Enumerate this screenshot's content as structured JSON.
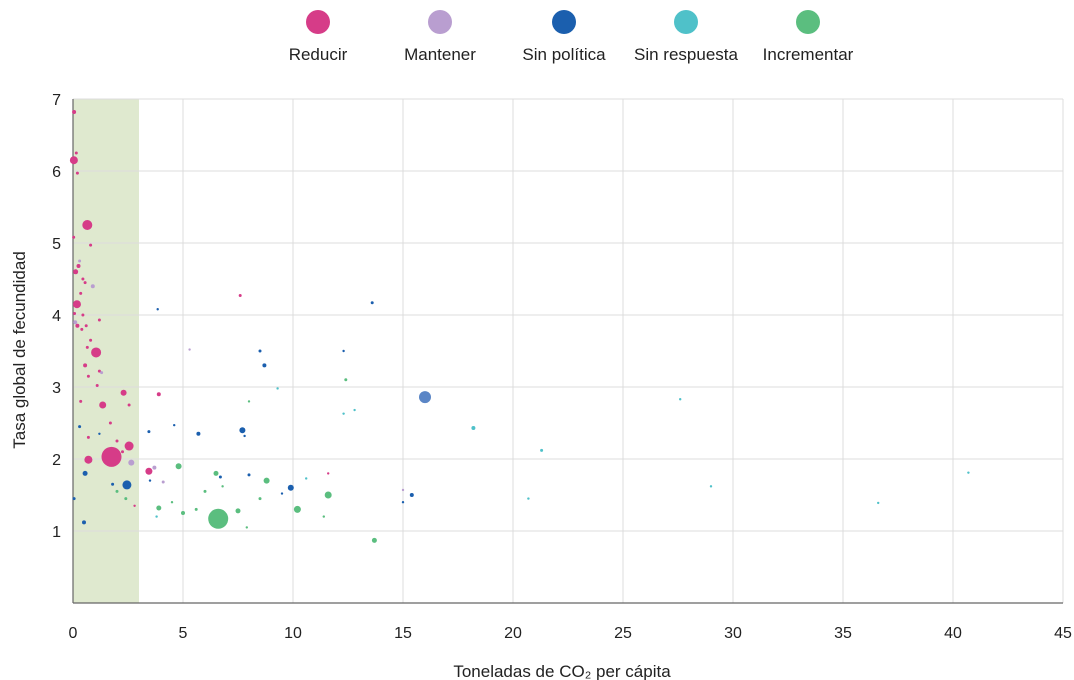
{
  "chart_data": {
    "type": "scatter",
    "title": "",
    "xlabel": "Toneladas de CO₂ per cápita",
    "ylabel": "Tasa global de fecundidad",
    "xlim": [
      0,
      45
    ],
    "ylim": [
      0,
      7
    ],
    "x_ticks": [
      0,
      5,
      10,
      15,
      20,
      25,
      30,
      35,
      40,
      45
    ],
    "y_ticks": [
      1,
      2,
      3,
      4,
      5,
      6,
      7
    ],
    "grid": true,
    "legend_position": "top-center",
    "highlight_band": {
      "x_start": 0,
      "x_end": 3,
      "color": "#dfe9cf"
    },
    "series": [
      {
        "name": "Reducir",
        "color": "#d63c88",
        "points": [
          {
            "x": 0.05,
            "y": 6.82,
            "s": 2
          },
          {
            "x": 0.04,
            "y": 6.15,
            "s": 4
          },
          {
            "x": 0.15,
            "y": 6.25,
            "s": 1.5
          },
          {
            "x": 0.2,
            "y": 5.97,
            "s": 1.5
          },
          {
            "x": 0.65,
            "y": 5.25,
            "s": 5
          },
          {
            "x": 0.03,
            "y": 5.08,
            "s": 1.5
          },
          {
            "x": 0.8,
            "y": 4.97,
            "s": 1.5
          },
          {
            "x": 0.25,
            "y": 4.68,
            "s": 2
          },
          {
            "x": 0.12,
            "y": 4.6,
            "s": 2.5
          },
          {
            "x": 0.45,
            "y": 4.5,
            "s": 1.5
          },
          {
            "x": 0.55,
            "y": 4.45,
            "s": 1.5
          },
          {
            "x": 0.35,
            "y": 4.3,
            "s": 1.5
          },
          {
            "x": 0.18,
            "y": 4.15,
            "s": 4
          },
          {
            "x": 0.07,
            "y": 4.02,
            "s": 1.5
          },
          {
            "x": 0.45,
            "y": 4.0,
            "s": 1.5
          },
          {
            "x": 0.6,
            "y": 3.85,
            "s": 1.5
          },
          {
            "x": 0.2,
            "y": 3.85,
            "s": 2
          },
          {
            "x": 1.2,
            "y": 3.93,
            "s": 1.5
          },
          {
            "x": 0.4,
            "y": 3.8,
            "s": 1.5
          },
          {
            "x": 0.8,
            "y": 3.65,
            "s": 1.5
          },
          {
            "x": 1.05,
            "y": 3.48,
            "s": 5
          },
          {
            "x": 0.65,
            "y": 3.55,
            "s": 1.5
          },
          {
            "x": 0.55,
            "y": 3.3,
            "s": 2
          },
          {
            "x": 1.2,
            "y": 3.22,
            "s": 1.5
          },
          {
            "x": 0.7,
            "y": 3.15,
            "s": 1.5
          },
          {
            "x": 1.1,
            "y": 3.02,
            "s": 1.5
          },
          {
            "x": 2.3,
            "y": 2.92,
            "s": 3
          },
          {
            "x": 3.9,
            "y": 2.9,
            "s": 2
          },
          {
            "x": 0.35,
            "y": 2.8,
            "s": 1.5
          },
          {
            "x": 1.35,
            "y": 2.75,
            "s": 3.5
          },
          {
            "x": 2.55,
            "y": 2.75,
            "s": 1.5
          },
          {
            "x": 1.7,
            "y": 2.5,
            "s": 1.5
          },
          {
            "x": 0.7,
            "y": 2.3,
            "s": 1.5
          },
          {
            "x": 2.0,
            "y": 2.25,
            "s": 1.5
          },
          {
            "x": 2.55,
            "y": 2.18,
            "s": 4.5
          },
          {
            "x": 1.75,
            "y": 2.03,
            "s": 10
          },
          {
            "x": 0.7,
            "y": 1.99,
            "s": 4
          },
          {
            "x": 2.25,
            "y": 2.1,
            "s": 1.5
          },
          {
            "x": 3.45,
            "y": 1.83,
            "s": 3.5
          },
          {
            "x": 7.6,
            "y": 4.27,
            "s": 1.5
          },
          {
            "x": 11.6,
            "y": 1.8,
            "s": 1.2
          },
          {
            "x": 2.8,
            "y": 1.35,
            "s": 1.2
          }
        ]
      },
      {
        "name": "Mantener",
        "color": "#b99ed0",
        "points": [
          {
            "x": 0.3,
            "y": 4.75,
            "s": 1.5
          },
          {
            "x": 0.9,
            "y": 4.4,
            "s": 2
          },
          {
            "x": 0.1,
            "y": 3.9,
            "s": 2
          },
          {
            "x": 1.3,
            "y": 3.2,
            "s": 1.5
          },
          {
            "x": 5.3,
            "y": 3.52,
            "s": 1.2
          },
          {
            "x": 2.65,
            "y": 1.95,
            "s": 3
          },
          {
            "x": 3.7,
            "y": 1.88,
            "s": 2
          },
          {
            "x": 4.1,
            "y": 1.68,
            "s": 1.5
          },
          {
            "x": 15.0,
            "y": 1.57,
            "s": 1.2
          }
        ]
      },
      {
        "name": "Sin política",
        "color": "#1b5fae",
        "points": [
          {
            "x": 0.3,
            "y": 2.45,
            "s": 1.5
          },
          {
            "x": 0.55,
            "y": 1.8,
            "s": 2.5
          },
          {
            "x": 1.8,
            "y": 1.65,
            "s": 1.5
          },
          {
            "x": 2.45,
            "y": 1.64,
            "s": 4.5
          },
          {
            "x": 0.5,
            "y": 1.12,
            "s": 2
          },
          {
            "x": 0.05,
            "y": 1.45,
            "s": 1.5
          },
          {
            "x": 3.85,
            "y": 4.08,
            "s": 1.2
          },
          {
            "x": 3.45,
            "y": 2.38,
            "s": 1.5
          },
          {
            "x": 5.7,
            "y": 2.35,
            "s": 2
          },
          {
            "x": 7.7,
            "y": 2.4,
            "s": 3
          },
          {
            "x": 8.5,
            "y": 3.5,
            "s": 1.5
          },
          {
            "x": 8.7,
            "y": 3.3,
            "s": 2
          },
          {
            "x": 12.3,
            "y": 3.5,
            "s": 1.2
          },
          {
            "x": 13.6,
            "y": 4.17,
            "s": 1.5
          },
          {
            "x": 9.9,
            "y": 1.6,
            "s": 3
          },
          {
            "x": 15.4,
            "y": 1.5,
            "s": 2
          },
          {
            "x": 15.0,
            "y": 1.4,
            "s": 1.2
          },
          {
            "x": 6.7,
            "y": 1.75,
            "s": 1.5
          },
          {
            "x": 8.0,
            "y": 1.78,
            "s": 1.5
          },
          {
            "x": 4.6,
            "y": 2.47,
            "s": 1.2
          },
          {
            "x": 7.8,
            "y": 2.32,
            "s": 1.2
          },
          {
            "x": 9.5,
            "y": 1.52,
            "s": 1.2
          },
          {
            "x": 3.5,
            "y": 1.7,
            "s": 1.2
          },
          {
            "x": 1.2,
            "y": 2.35,
            "s": 1.2
          }
        ]
      },
      {
        "name": "Sin respuesta",
        "color": "#4fc1c9",
        "points": [
          {
            "x": 16.0,
            "y": 2.86,
            "s": 6,
            "color": "#5b86c6"
          },
          {
            "x": 18.2,
            "y": 2.43,
            "s": 2
          },
          {
            "x": 21.3,
            "y": 2.12,
            "s": 1.5
          },
          {
            "x": 27.6,
            "y": 2.83,
            "s": 1.2
          },
          {
            "x": 29.0,
            "y": 1.62,
            "s": 1.2
          },
          {
            "x": 40.7,
            "y": 1.81,
            "s": 1.2
          },
          {
            "x": 36.6,
            "y": 1.39,
            "s": 1.2
          },
          {
            "x": 20.7,
            "y": 1.45,
            "s": 1.2
          },
          {
            "x": 12.8,
            "y": 2.68,
            "s": 1.2
          },
          {
            "x": 12.3,
            "y": 2.63,
            "s": 1.2
          },
          {
            "x": 9.3,
            "y": 2.98,
            "s": 1.2
          },
          {
            "x": 10.6,
            "y": 1.73,
            "s": 1.2
          },
          {
            "x": 3.8,
            "y": 1.2,
            "s": 1.2
          }
        ]
      },
      {
        "name": "Incrementar",
        "color": "#5bbe7f",
        "points": [
          {
            "x": 6.6,
            "y": 1.17,
            "s": 10
          },
          {
            "x": 4.8,
            "y": 1.9,
            "s": 3
          },
          {
            "x": 6.5,
            "y": 1.8,
            "s": 2.5
          },
          {
            "x": 8.8,
            "y": 1.7,
            "s": 3
          },
          {
            "x": 11.6,
            "y": 1.5,
            "s": 3.5
          },
          {
            "x": 10.2,
            "y": 1.3,
            "s": 3.5
          },
          {
            "x": 13.7,
            "y": 0.87,
            "s": 2.5
          },
          {
            "x": 3.9,
            "y": 1.32,
            "s": 2.5
          },
          {
            "x": 5.0,
            "y": 1.25,
            "s": 2
          },
          {
            "x": 5.6,
            "y": 1.3,
            "s": 1.5
          },
          {
            "x": 7.5,
            "y": 1.28,
            "s": 2.5
          },
          {
            "x": 7.9,
            "y": 1.05,
            "s": 1.2
          },
          {
            "x": 12.4,
            "y": 3.1,
            "s": 1.5
          },
          {
            "x": 8.0,
            "y": 2.8,
            "s": 1.2
          },
          {
            "x": 2.0,
            "y": 1.55,
            "s": 1.5
          },
          {
            "x": 2.4,
            "y": 1.45,
            "s": 1.5
          },
          {
            "x": 6.0,
            "y": 1.55,
            "s": 1.5
          },
          {
            "x": 4.5,
            "y": 1.4,
            "s": 1.2
          },
          {
            "x": 8.5,
            "y": 1.45,
            "s": 1.5
          },
          {
            "x": 1.0,
            "y": 3.5,
            "s": 1.2
          },
          {
            "x": 6.8,
            "y": 1.62,
            "s": 1.2
          },
          {
            "x": 11.4,
            "y": 1.2,
            "s": 1.2
          }
        ]
      }
    ]
  }
}
